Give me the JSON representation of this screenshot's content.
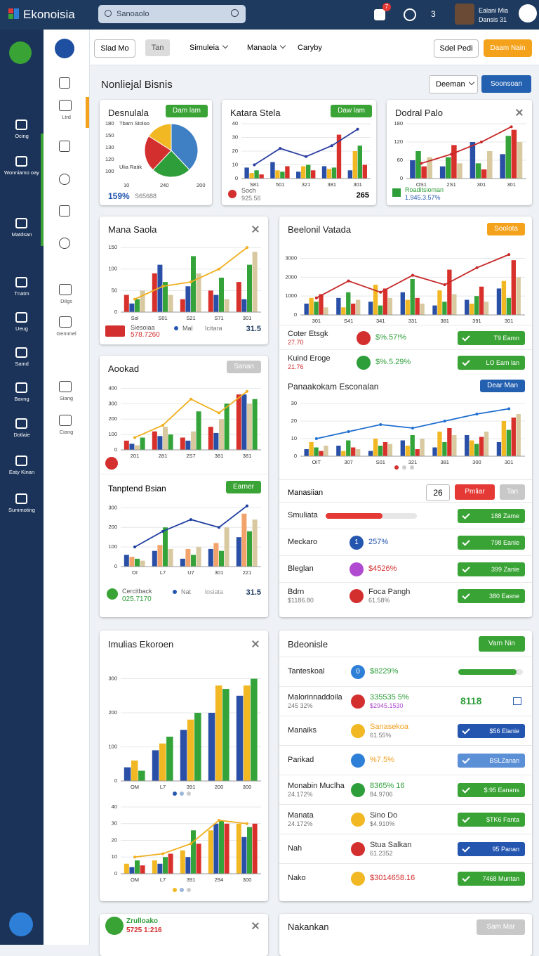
{
  "topbar": {
    "logo": "Ekonoisia",
    "search": "Sanoaolo",
    "notification": "7",
    "count": "3",
    "user_name": "Ealani Mia",
    "user_role": "Dansis 31"
  },
  "sidebar": [
    "Ocing",
    "Wonniamo oay",
    "Matdsan",
    "Tnatm",
    "Ueug",
    "Samd",
    "Bavng",
    "Dotlaie",
    "Eaty Kinan",
    "Summoting"
  ],
  "subnav": [
    "Ltrd",
    "Dilgs",
    "Gemmel",
    "Siang",
    "Ciang"
  ],
  "toolbar": {
    "buttons": [
      "Slad Mo",
      "Tan"
    ],
    "menus": [
      "Simuleia",
      "Manaola",
      "Caryby"
    ],
    "right": [
      "Sdel Pedi",
      "Daam Nain"
    ]
  },
  "section": {
    "title": "Nonliejal Bisnis",
    "select": "Deeman",
    "button": "Soonsoan"
  },
  "cards": {
    "desnulala": {
      "title": "Desnulala",
      "button": "Dam lam",
      "chart": {
        "type": "pie",
        "values": [
          38,
          24,
          22,
          16
        ],
        "colors": [
          "#3f7fc4",
          "#2e9e3a",
          "#d32f2f",
          "#f2b824"
        ],
        "ylabels": [
          "180",
          "150",
          "130",
          "120",
          "100"
        ],
        "xlabels": [
          "10",
          "240",
          "200"
        ],
        "legend": [
          "Tbarn Stoloo",
          "Ulia Ratik"
        ]
      },
      "foot_value": "159%",
      "foot_sub": "S65688"
    },
    "katara": {
      "title": "Katara Stela",
      "button": "Daw lam",
      "chart": {
        "type": "combo",
        "categories": [
          "S81",
          "501",
          "321",
          "381",
          "301"
        ],
        "ylim": [
          0,
          40
        ],
        "yticks": [
          0,
          10,
          20,
          30,
          40
        ],
        "series": [
          {
            "color": "#2a4fa6",
            "values": [
              8,
              12,
              5,
              9,
              6
            ]
          },
          {
            "color": "#f2b824",
            "values": [
              4,
              6,
              9,
              7,
              20
            ]
          },
          {
            "color": "#33a33a",
            "values": [
              6,
              5,
              10,
              8,
              24
            ]
          },
          {
            "color": "#d8312c",
            "values": [
              3,
              9,
              6,
              32,
              10
            ]
          }
        ],
        "line": {
          "color": "#2b3ea0",
          "values": [
            10,
            22,
            16,
            24,
            36
          ]
        }
      },
      "foot_label": "Soch",
      "foot_sub": "925.56",
      "foot_value": "265"
    },
    "dodral": {
      "title": "Dodral Palo",
      "chart": {
        "type": "combo",
        "categories": [
          "OS1",
          "2S1",
          "301",
          "301"
        ],
        "ylim": [
          0,
          180
        ],
        "yticks": [
          0,
          60,
          120,
          180
        ],
        "series": [
          {
            "color": "#2a4fa6",
            "values": [
              60,
              40,
              120,
              80
            ]
          },
          {
            "color": "#33a33a",
            "values": [
              90,
              70,
              50,
              140
            ]
          },
          {
            "color": "#d8312c",
            "values": [
              40,
              110,
              30,
              160
            ]
          },
          {
            "color": "#d8c9a0",
            "values": [
              70,
              50,
              90,
              120
            ]
          }
        ],
        "line": {
          "color": "#c62828",
          "values": [
            50,
            80,
            120,
            170
          ]
        }
      },
      "foot_label": "Roaditsioman",
      "foot_sub": "1.945.3.57%"
    },
    "mana": {
      "title": "Mana Saola",
      "chart": {
        "type": "combo",
        "categories": [
          "Sol",
          "S01",
          "S21",
          "S71",
          "301"
        ],
        "ylim": [
          0,
          160
        ],
        "yticks": [
          0,
          50,
          100,
          150
        ],
        "series": [
          {
            "color": "#d8312c",
            "values": [
              40,
              90,
              30,
              50,
              70
            ]
          },
          {
            "color": "#2a4fa6",
            "values": [
              20,
              110,
              60,
              40,
              30
            ]
          },
          {
            "color": "#33a33a",
            "values": [
              30,
              70,
              130,
              80,
              110
            ]
          },
          {
            "color": "#d8c9a0",
            "values": [
              50,
              40,
              90,
              30,
              140
            ]
          }
        ],
        "line": {
          "color": "#f0b020",
          "values": [
            30,
            60,
            70,
            100,
            150
          ]
        }
      },
      "foot_label": "Siesoiaa",
      "foot_sub": "578.7260",
      "foot_dot": "Mal",
      "foot_note": "Icitara",
      "foot_value": "31.5"
    },
    "beelonil": {
      "title": "Beelonil Vatada",
      "button": "Soolota",
      "chart": {
        "type": "combo",
        "categories": [
          "301",
          "S41",
          "341",
          "331",
          "381",
          "391",
          "301"
        ],
        "ylim": [
          0,
          3800
        ],
        "yticks": [
          0,
          1000,
          2000,
          3000
        ],
        "series": [
          {
            "color": "#2a4fa6",
            "values": [
              600,
              900,
              700,
              1200,
              500,
              800,
              1400
            ]
          },
          {
            "color": "#f2b824",
            "values": [
              900,
              400,
              1600,
              800,
              1300,
              600,
              1800
            ]
          },
          {
            "color": "#33a33a",
            "values": [
              700,
              1200,
              500,
              1900,
              700,
              1000,
              900
            ]
          },
          {
            "color": "#d8312c",
            "values": [
              1100,
              600,
              1400,
              900,
              2400,
              1500,
              2900
            ]
          },
          {
            "color": "#d8c9a0",
            "values": [
              400,
              800,
              900,
              600,
              1100,
              700,
              2000
            ]
          }
        ],
        "line": {
          "color": "#c62828",
          "values": [
            900,
            1800,
            1200,
            2100,
            1600,
            2500,
            3200
          ]
        }
      },
      "rows": [
        {
          "label": "Coter Etsgk",
          "sub": "27.70",
          "sub_color": "#d32f2f",
          "icon": "#d32f2f",
          "value": "$%.57!%",
          "button": "T9 Eamn",
          "button_color": "#3aa335"
        },
        {
          "label": "Kuind Eroge",
          "sub": "21.76",
          "sub_color": "#d32f2f",
          "icon": "#2e9e3a",
          "value": "$%.5.29%",
          "button": "LO Eam lan",
          "button_color": "#3aa335"
        }
      ],
      "sub_title": "Panaakokam Esconalan",
      "sub_button": "Dear Man",
      "sub_chart": {
        "type": "combo",
        "categories": [
          "OIT",
          "307",
          "S01",
          "321",
          "381",
          "300",
          "301"
        ],
        "ylim": [
          0,
          32
        ],
        "yticks": [
          0,
          10,
          20,
          30
        ],
        "series": [
          {
            "color": "#2a4fa6",
            "values": [
              4,
              6,
              3,
              9,
              5,
              12,
              8
            ]
          },
          {
            "color": "#f2b824",
            "values": [
              8,
              3,
              10,
              6,
              14,
              9,
              20
            ]
          },
          {
            "color": "#33a33a",
            "values": [
              5,
              9,
              6,
              12,
              8,
              7,
              15
            ]
          },
          {
            "color": "#d8312c",
            "values": [
              3,
              5,
              8,
              4,
              16,
              11,
              22
            ]
          },
          {
            "color": "#d8c9a0",
            "values": [
              6,
              4,
              7,
              10,
              12,
              14,
              24
            ]
          }
        ],
        "line": {
          "color": "#1f6fd0",
          "values": [
            10,
            14,
            18,
            16,
            20,
            24,
            27
          ]
        }
      },
      "manage": {
        "label": "Manasiian",
        "input": "26",
        "primary": "Pmliar",
        "secondary": "Tan"
      },
      "list": [
        {
          "label": "Smuliata",
          "progress": 62,
          "progress_color": "#e53935",
          "button": "188 Zame",
          "button_color": "#3aa335"
        },
        {
          "label": "Meckaro",
          "icon": "#2456b0",
          "icon_text": "1",
          "value": "257%",
          "value_color": "#2456b0",
          "button": "798 Eanie",
          "button_color": "#3aa335"
        },
        {
          "label": "Bleglan",
          "icon": "#b04ad0",
          "value": "$4526%",
          "value_color": "#d32f2f",
          "button": "399 Zanie",
          "button_color": "#3aa335"
        },
        {
          "label": "Bdrn",
          "sub": "$1186.80",
          "icon": "#d32f2f",
          "value": "Foca Pangh",
          "value_color": "#333333",
          "value2": "61.58%",
          "button": "380 Easne",
          "button_color": "#3aa335"
        }
      ]
    },
    "aookad": {
      "title": "Aookad",
      "button": "Sanan",
      "chart": {
        "type": "combo",
        "categories": [
          "201",
          "281",
          "2S7",
          "381",
          "381"
        ],
        "ylim": [
          0,
          420
        ],
        "yticks": [
          0,
          100,
          200,
          300,
          400
        ],
        "series": [
          {
            "color": "#d8312c",
            "values": [
              60,
              120,
              80,
              150,
              360
            ]
          },
          {
            "color": "#2a4fa6",
            "values": [
              40,
              90,
              60,
              110,
              360
            ]
          },
          {
            "color": "#d8c9a0",
            "values": [
              30,
              150,
              120,
              200,
              300
            ]
          },
          {
            "color": "#33a33a",
            "values": [
              80,
              100,
              250,
              300,
              330
            ]
          }
        ],
        "line": {
          "color": "#f0b020",
          "values": [
            80,
            160,
            330,
            240,
            380
          ]
        }
      },
      "sub_title": "Tanptend Bsian",
      "sub_button": "Earner",
      "sub_chart": {
        "type": "combo",
        "categories": [
          "OI",
          "L7",
          "U7",
          "301",
          "221"
        ],
        "ylim": [
          0,
          330
        ],
        "yticks": [
          0,
          100,
          200,
          300
        ],
        "series": [
          {
            "color": "#2a4fa6",
            "values": [
              60,
              80,
              40,
              90,
              150
            ]
          },
          {
            "color": "#f2a36b",
            "values": [
              50,
              110,
              90,
              120,
              270
            ]
          },
          {
            "color": "#33a33a",
            "values": [
              40,
              200,
              60,
              80,
              180
            ]
          },
          {
            "color": "#d8c9a0",
            "values": [
              30,
              90,
              100,
              200,
              240
            ]
          }
        ],
        "line": {
          "color": "#1f3fa0",
          "values": [
            100,
            180,
            240,
            200,
            310
          ]
        }
      },
      "foot_label": "Cercitback",
      "foot_sub": "025.7170",
      "foot_dot": "Nat",
      "foot_note": "losiata",
      "foot_value": "31.5"
    },
    "imulias": {
      "title": "Imulias Ekoroen",
      "chart": {
        "type": "combo",
        "categories": [
          "OM",
          "L7",
          "391",
          "200",
          "300"
        ],
        "ylim": [
          0,
          330
        ],
        "yticks": [
          0,
          100,
          200,
          300
        ],
        "series": [
          {
            "color": "#2a4fa6",
            "values": [
              40,
              90,
              150,
              200,
              250
            ]
          },
          {
            "color": "#f2b824",
            "values": [
              60,
              110,
              180,
              280,
              280
            ]
          },
          {
            "color": "#33a33a",
            "values": [
              30,
              130,
              200,
              270,
              300
            ]
          }
        ]
      },
      "sub_chart": {
        "type": "combo",
        "categories": [
          "OM",
          "L7",
          "391",
          "294",
          "300"
        ],
        "ylim": [
          0,
          40
        ],
        "yticks": [
          0,
          10,
          20,
          30,
          40
        ],
        "series": [
          {
            "color": "#f2b824",
            "values": [
              6,
              8,
              14,
              26,
              30
            ]
          },
          {
            "color": "#2a4fa6",
            "values": [
              4,
              6,
              10,
              30,
              22
            ]
          },
          {
            "color": "#33a33a",
            "values": [
              8,
              10,
              26,
              32,
              28
            ]
          },
          {
            "color": "#d8312c",
            "values": [
              5,
              12,
              18,
              30,
              30
            ]
          }
        ],
        "line": {
          "color": "#f0b020",
          "values": [
            10,
            12,
            18,
            32,
            30
          ]
        }
      }
    },
    "bdeonisle": {
      "title": "Bdeonisle",
      "button": "Varn Nin",
      "rows": [
        {
          "label": "Tanteskoal",
          "icon": "#2e7fd8",
          "icon_text": "0",
          "value": "$8229%",
          "progress": 90,
          "progress_color": "#3aa335"
        },
        {
          "label": "Malorinnaddoila",
          "sub": "245 32%",
          "icon": "#d32f2f",
          "value": "335535 5%",
          "value2": "$2945.1530",
          "value2_color": "#b04ad0",
          "tag": "8118"
        },
        {
          "label": "Manaiks",
          "icon": "#f2b824",
          "value": "Sanasekoa",
          "value_color": "#f0a020",
          "value2": "61.55%",
          "button": "$56 Elanie",
          "button_color": "#2456b0"
        },
        {
          "label": "Parikad",
          "icon": "#2e7fd8",
          "value": "%7.5%",
          "value_color": "#f0a020",
          "button": "BSLZanan",
          "button_color": "#5b8fd6"
        },
        {
          "label": "Monabin Muclha",
          "sub": "24.172%",
          "icon": "#2e9e3a",
          "value": "8365% 16",
          "value2": "84.9706",
          "button": "$:95 Eanans",
          "button_color": "#3aa335"
        },
        {
          "label": "Manata",
          "sub": "24.172%",
          "icon": "#f2b824",
          "value": "Sino Do",
          "value_color": "#333333",
          "value2": "$4.910%",
          "button": "$TK6 Fanta",
          "button_color": "#3aa335"
        },
        {
          "label": "Nah",
          "icon": "#d32f2f",
          "value": "Stua Salkan",
          "value_color": "#333333",
          "value2": "61.2352",
          "button": "95 Panan",
          "button_color": "#2456b0"
        },
        {
          "label": "Nako",
          "icon": "#f2b824",
          "value": "$3014658.16",
          "value_color": "#d32f2f",
          "button": "7468 Muntan",
          "button_color": "#3aa335"
        }
      ]
    },
    "zrulloako": {
      "title": "Zrulloako",
      "sub": "5725 1:216"
    },
    "nakankan": {
      "title": "Nakankan",
      "button": "Sam Mar"
    }
  }
}
